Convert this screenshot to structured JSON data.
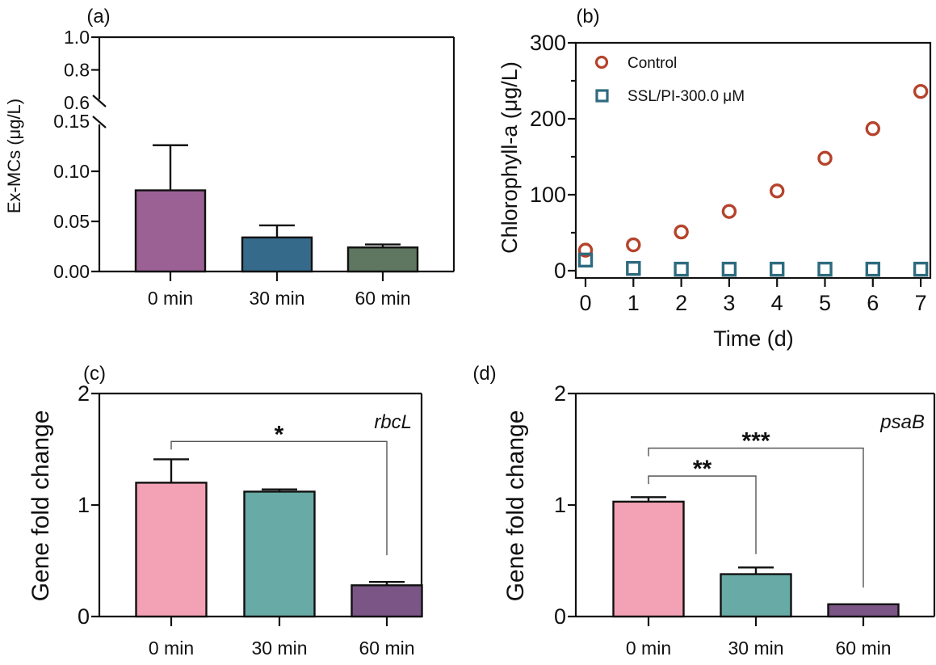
{
  "chart_data": [
    {
      "panel": "(a)",
      "type": "bar",
      "ylabel": "Ex-MCs (μg/L)",
      "xlabel": "",
      "categories": [
        "0 min",
        "30 min",
        "60 min"
      ],
      "values": [
        0.081,
        0.034,
        0.024
      ],
      "errors_upper": [
        0.126,
        0.046,
        0.027
      ],
      "colors": [
        "#9b6195",
        "#356a8a",
        "#5f7760"
      ],
      "y_axis_broken": true,
      "ylim_lower": [
        0,
        0.15
      ],
      "ylim_upper": [
        0.6,
        1.0
      ],
      "yticks_lower": [
        "0.00",
        "0.05",
        "0.10",
        "0.15"
      ],
      "yticks_upper": [
        "0.6",
        "0.8",
        "1.0"
      ]
    },
    {
      "panel": "(b)",
      "type": "scatter",
      "ylabel": "Chlorophyll-a (μg/L)",
      "xlabel": "Time (d)",
      "x": [
        0,
        1,
        2,
        3,
        4,
        5,
        6,
        7
      ],
      "xticks": [
        "0",
        "1",
        "2",
        "3",
        "4",
        "5",
        "6",
        "7"
      ],
      "ylim": [
        0,
        300
      ],
      "yticks": [
        "0",
        "100",
        "200",
        "300"
      ],
      "legend_position": "top-left",
      "series": [
        {
          "name": "Control",
          "marker": "circle",
          "color": "#b5432c",
          "values": [
            27,
            34,
            51,
            78,
            105,
            148,
            187,
            236
          ]
        },
        {
          "name": "SSL/PI-300.0 μM",
          "marker": "square",
          "color": "#2e6b80",
          "values": [
            14,
            3,
            2,
            2,
            2,
            2,
            2,
            2
          ]
        }
      ]
    },
    {
      "panel": "(c)",
      "type": "bar",
      "gene": "rbcL",
      "ylabel": "Gene fold change",
      "xlabel": "",
      "categories": [
        "0 min",
        "30 min",
        "60 min"
      ],
      "values": [
        1.2,
        1.12,
        0.28
      ],
      "errors_upper": [
        1.41,
        1.14,
        0.31
      ],
      "colors": [
        "#f3a2b5",
        "#68aaa5",
        "#7a5585"
      ],
      "ylim": [
        0,
        2
      ],
      "yticks": [
        "0",
        "1",
        "2"
      ],
      "significance": [
        {
          "from": "0 min",
          "to": "60 min",
          "label": "*"
        }
      ]
    },
    {
      "panel": "(d)",
      "type": "bar",
      "gene": "psaB",
      "ylabel": "Gene fold change",
      "xlabel": "",
      "categories": [
        "0 min",
        "30 min",
        "60 min"
      ],
      "values": [
        1.03,
        0.38,
        0.11
      ],
      "errors_upper": [
        1.07,
        0.44,
        0.11
      ],
      "colors": [
        "#f3a2b5",
        "#68aaa5",
        "#7a5585"
      ],
      "ylim": [
        0,
        2
      ],
      "yticks": [
        "0",
        "1",
        "2"
      ],
      "significance": [
        {
          "from": "0 min",
          "to": "30 min",
          "label": "**"
        },
        {
          "from": "0 min",
          "to": "60 min",
          "label": "***"
        }
      ]
    }
  ]
}
